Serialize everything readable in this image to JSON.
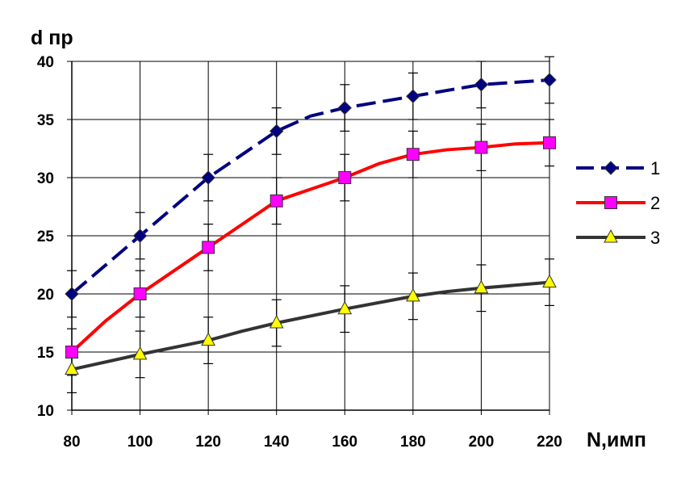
{
  "chart_data": {
    "type": "line",
    "ylabel": "d пр",
    "xlabel": "N,имп",
    "x_ticks": [
      "80",
      "100",
      "120",
      "140",
      "160",
      "180",
      "200",
      "220"
    ],
    "y_ticks": [
      "10",
      "15",
      "20",
      "25",
      "30",
      "35",
      "40"
    ],
    "xlim": [
      80,
      220
    ],
    "ylim": [
      10,
      40
    ],
    "grid": true,
    "legend_position": "right",
    "error_bar": 2,
    "series": [
      {
        "name": "1",
        "color": "#000080",
        "line_style": "dashed",
        "marker": "diamond",
        "marker_color": "#000080",
        "curve_x": [
          80,
          100,
          120,
          140,
          150,
          160,
          180,
          200,
          220
        ],
        "curve_y": [
          20,
          25,
          30,
          34,
          35.3,
          36,
          37,
          38,
          38.4
        ],
        "x": [
          80,
          100,
          120,
          140,
          160,
          180,
          200,
          220
        ],
        "y": [
          20,
          25,
          30,
          34,
          36,
          37,
          38,
          38.4
        ]
      },
      {
        "name": "2",
        "color": "#ff0000",
        "line_style": "solid",
        "marker": "square",
        "marker_color": "#ff00ff",
        "curve_x": [
          80,
          90,
          100,
          110,
          120,
          130,
          140,
          150,
          160,
          170,
          180,
          190,
          200,
          210,
          220
        ],
        "curve_y": [
          15,
          17.7,
          20,
          22,
          24,
          26,
          28,
          29,
          30,
          31.2,
          32,
          32.4,
          32.6,
          32.9,
          33
        ],
        "x": [
          80,
          100,
          120,
          140,
          160,
          180,
          200,
          220
        ],
        "y": [
          15,
          20,
          24,
          28,
          30,
          32,
          32.6,
          33
        ]
      },
      {
        "name": "3",
        "color": "#333333",
        "line_style": "solid",
        "marker": "triangle",
        "marker_color": "#ffff00",
        "curve_x": [
          80,
          100,
          120,
          130,
          140,
          160,
          180,
          190,
          200,
          220
        ],
        "curve_y": [
          13.5,
          14.8,
          16,
          16.8,
          17.5,
          18.7,
          19.8,
          20.2,
          20.5,
          21
        ],
        "x": [
          80,
          100,
          120,
          140,
          160,
          180,
          200,
          220
        ],
        "y": [
          13.5,
          14.8,
          16,
          17.5,
          18.7,
          19.8,
          20.5,
          21
        ]
      }
    ]
  }
}
